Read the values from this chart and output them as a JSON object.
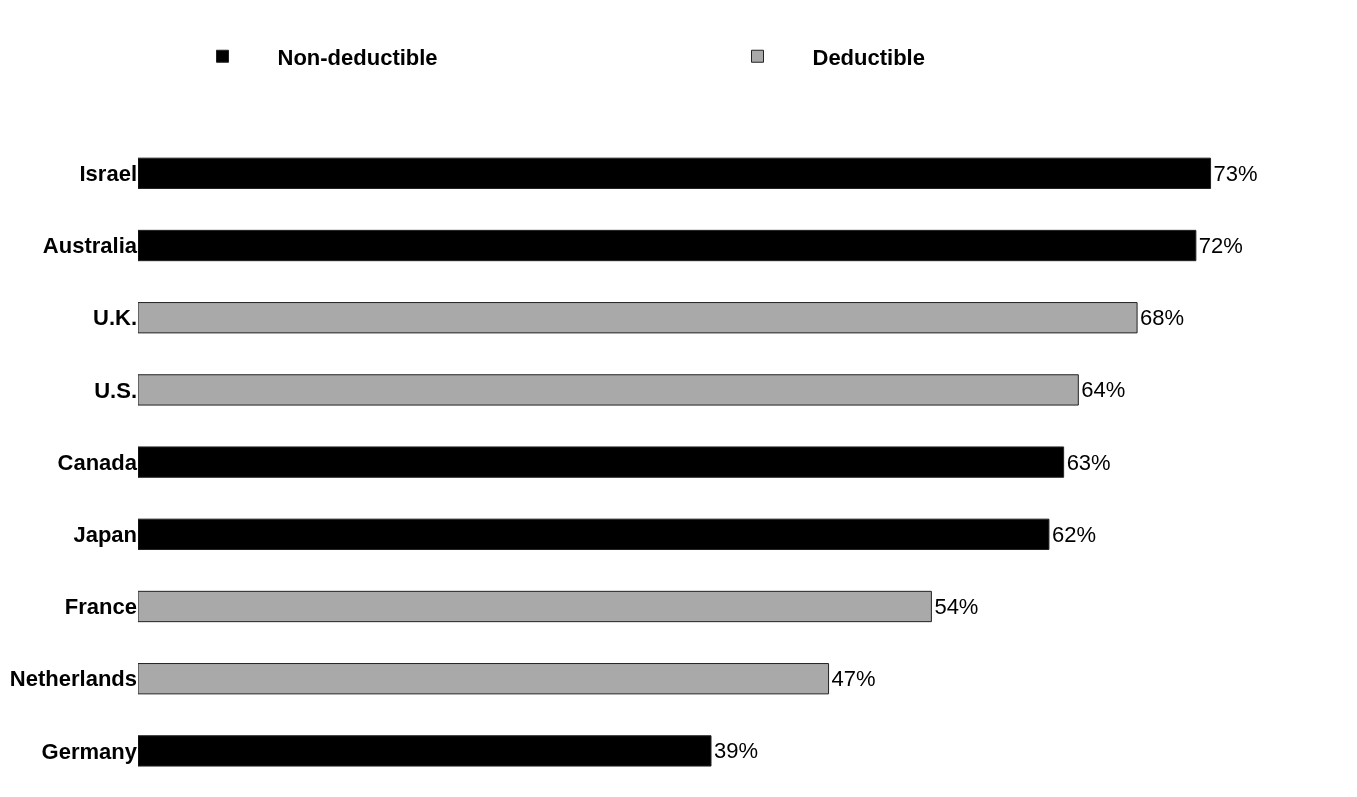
{
  "chart_data": {
    "type": "bar",
    "orientation": "horizontal",
    "categories": [
      "Israel",
      "Australia",
      "U.K.",
      "U.S.",
      "Canada",
      "Japan",
      "France",
      "Netherlands",
      "Germany"
    ],
    "series": [
      {
        "name": "Non-deductible",
        "color": "#000000",
        "values": [
          73,
          72,
          null,
          null,
          63,
          62,
          null,
          null,
          39
        ],
        "value_labels": [
          "73%",
          "72%",
          null,
          null,
          "63%",
          "62%",
          null,
          null,
          "39%"
        ]
      },
      {
        "name": "Deductible",
        "color": "#a9a9a9",
        "values": [
          null,
          null,
          68,
          64,
          null,
          null,
          54,
          47,
          null
        ],
        "value_labels": [
          null,
          null,
          "68%",
          "64%",
          null,
          null,
          "54%",
          "47%",
          null
        ]
      }
    ],
    "legend": "top",
    "grid": false,
    "tick_labels": "y"
  }
}
